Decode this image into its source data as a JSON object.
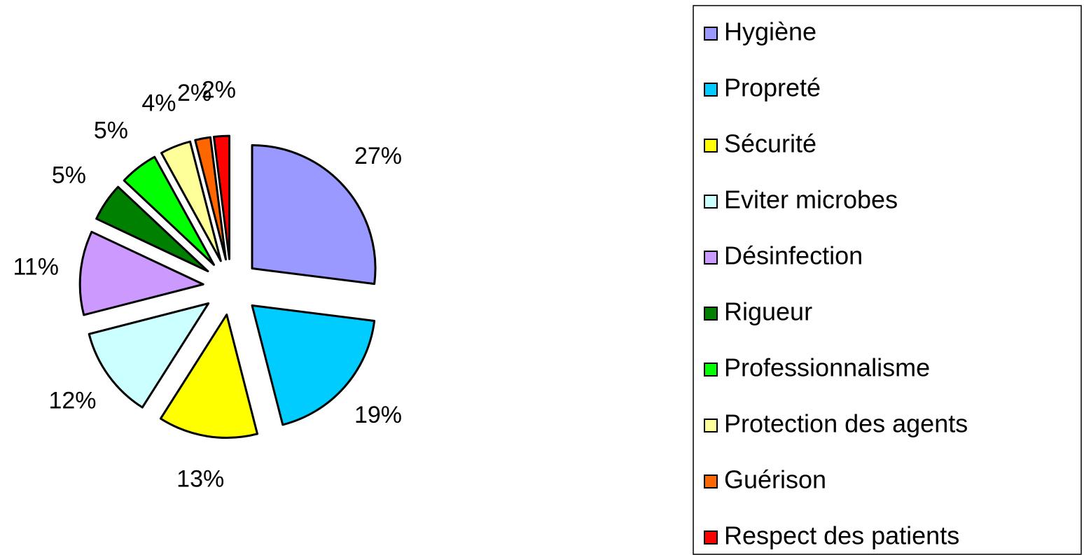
{
  "chart_data": {
    "type": "pie",
    "categories": [
      "Hygiène",
      "Propreté",
      "Sécurité",
      "Eviter microbes",
      "Désinfection",
      "Rigueur",
      "Professionnalisme",
      "Protection des agents",
      "Guérison",
      "Respect des patients"
    ],
    "values": [
      27,
      19,
      13,
      12,
      11,
      5,
      5,
      4,
      2,
      2
    ],
    "value_labels": [
      "27%",
      "19%",
      "13%",
      "12%",
      "11%",
      "5%",
      "5%",
      "4%",
      "2%",
      "2%"
    ],
    "colors": [
      "#9999ff",
      "#00ccff",
      "#ffff00",
      "#ccffff",
      "#cc99ff",
      "#008000",
      "#00ff00",
      "#ffff99",
      "#ff6600",
      "#ff0000"
    ],
    "legend": "right"
  }
}
